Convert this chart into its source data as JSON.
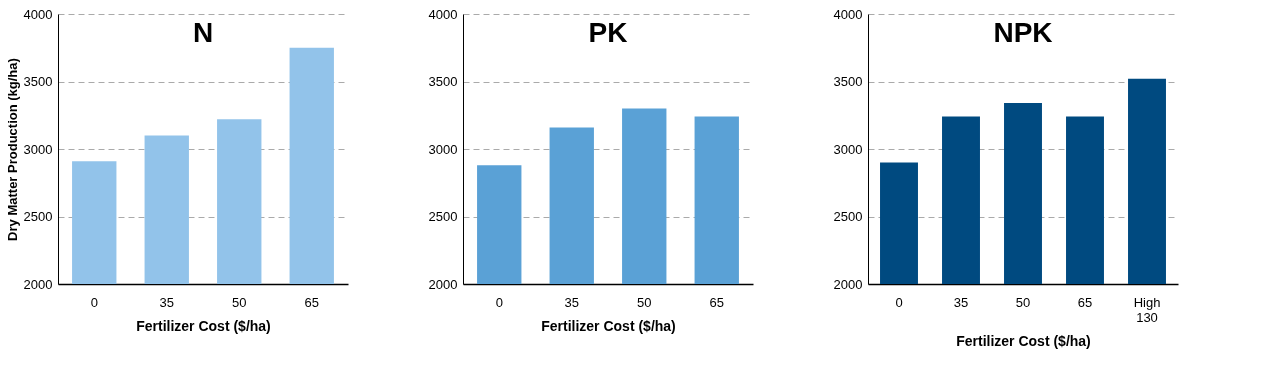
{
  "chart_data": [
    {
      "type": "bar",
      "title": "N",
      "xlabel": "Fertilizer Cost ($/ha)",
      "ylabel": "Dry Matter Production (kg/ha)",
      "categories": [
        "0",
        "35",
        "50",
        "65"
      ],
      "values": [
        2910,
        3100,
        3220,
        3750
      ],
      "color": "#92c3ea",
      "ylim": [
        2000,
        4000
      ],
      "yticks": [
        2000,
        2500,
        3000,
        3500,
        4000
      ],
      "grid": "y"
    },
    {
      "type": "bar",
      "title": "PK",
      "xlabel": "Fertilizer Cost ($/ha)",
      "categories": [
        "0",
        "35",
        "50",
        "65"
      ],
      "values": [
        2880,
        3160,
        3300,
        3240
      ],
      "color": "#5aa1d6",
      "ylim": [
        2000,
        4000
      ],
      "yticks": [
        2000,
        2500,
        3000,
        3500,
        4000
      ],
      "grid": "y"
    },
    {
      "type": "bar",
      "title": "NPK",
      "xlabel": "Fertilizer Cost ($/ha)",
      "categories": [
        "0",
        "35",
        "50",
        "65",
        "High 130"
      ],
      "values": [
        2900,
        3240,
        3340,
        3240,
        3520
      ],
      "color": "#004a80",
      "ylim": [
        2000,
        4000
      ],
      "yticks": [
        2000,
        2500,
        3000,
        3500,
        4000
      ],
      "grid": "y"
    }
  ]
}
